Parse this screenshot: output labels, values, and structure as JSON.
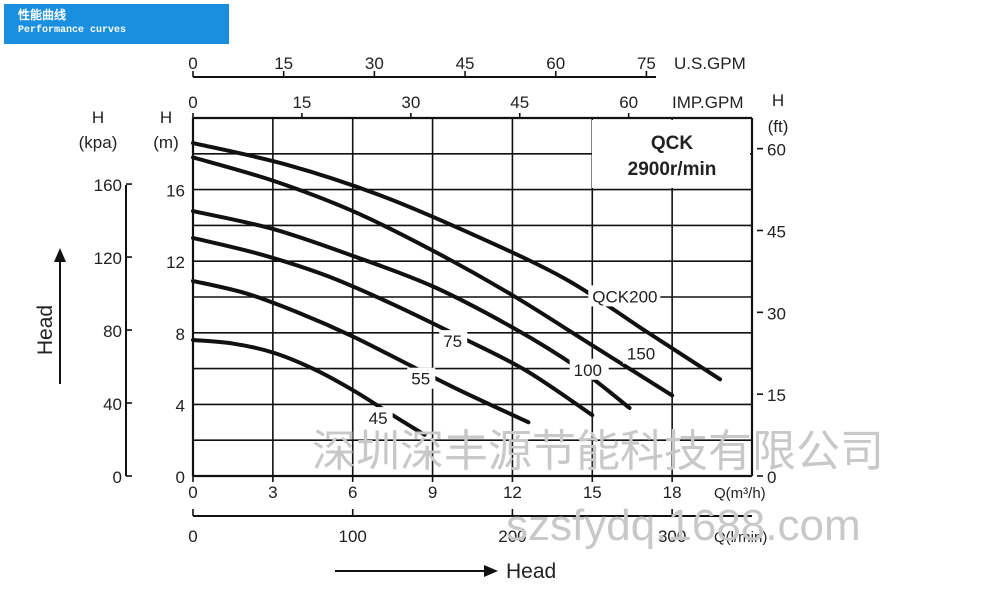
{
  "banner": {
    "title_cn": "性能曲线",
    "title_en": "Performance curves"
  },
  "watermark": {
    "line1": "深圳深丰源节能科技有限公司",
    "line2": "szsfydq.1688.com"
  },
  "chart_data": {
    "type": "line",
    "model": "QCK",
    "speed": "2900r/min",
    "x": {
      "label": "Q(m³/h)",
      "range": [
        0,
        21
      ],
      "ticks": [
        0,
        3,
        6,
        9,
        12,
        15,
        18
      ],
      "grid_every": 3
    },
    "x_secondary": {
      "label": "Q(l/min)",
      "ticks": [
        0,
        100,
        200,
        300
      ]
    },
    "top_axis_usgpm": {
      "label": "U.S.GPM",
      "ticks": [
        0,
        15,
        30,
        45,
        60,
        75
      ]
    },
    "top_axis_impgpm": {
      "label": "IMP.GPM",
      "ticks": [
        0,
        15,
        30,
        45,
        60
      ]
    },
    "y": {
      "label": "H\n(m)",
      "range": [
        0,
        20
      ],
      "ticks": [
        0,
        4,
        8,
        12,
        16
      ],
      "grid_every": 2
    },
    "y_kpa": {
      "label": "H\n(kpa)",
      "ticks": [
        0,
        40,
        80,
        120,
        160
      ]
    },
    "y_ft": {
      "label": "H\n(ft)",
      "ticks": [
        0,
        15,
        30,
        45,
        60
      ]
    },
    "left_axis_title": "Head",
    "bottom_axis_title": "Head",
    "series": [
      {
        "name": "45",
        "x": [
          0,
          1.5,
          3,
          4.5,
          6,
          7.5,
          8.7
        ],
        "y": [
          7.6,
          7.4,
          6.9,
          6.0,
          4.8,
          3.4,
          2.3
        ],
        "label_x": 6.6,
        "label_y": 2.9
      },
      {
        "name": "55",
        "x": [
          0,
          2,
          4,
          6,
          8,
          10,
          12.6
        ],
        "y": [
          10.9,
          10.2,
          9.1,
          7.8,
          6.3,
          4.8,
          3.0
        ],
        "label_x": 8.2,
        "label_y": 5.1
      },
      {
        "name": "75",
        "x": [
          0,
          2.5,
          5,
          7.5,
          10,
          12.5,
          15
        ],
        "y": [
          13.3,
          12.4,
          11.2,
          9.6,
          7.8,
          5.9,
          3.4
        ],
        "label_x": 9.4,
        "label_y": 7.2
      },
      {
        "name": "100",
        "x": [
          0,
          3,
          6,
          9,
          12,
          14.5,
          16.4
        ],
        "y": [
          14.8,
          13.8,
          12.3,
          10.6,
          8.3,
          6.0,
          3.8
        ],
        "label_x": 14.3,
        "label_y": 5.6
      },
      {
        "name": "150",
        "x": [
          0,
          3,
          6,
          9,
          12,
          15,
          18
        ],
        "y": [
          17.8,
          16.5,
          14.8,
          12.6,
          10.1,
          7.3,
          4.5
        ],
        "label_x": 16.3,
        "label_y": 6.5
      },
      {
        "name": "QCK200",
        "x": [
          0,
          3.5,
          7,
          10.5,
          14,
          17,
          19.8
        ],
        "y": [
          18.6,
          17.4,
          15.7,
          13.5,
          11.0,
          8.1,
          5.4
        ],
        "label_x": 15.0,
        "label_y": 9.7
      }
    ],
    "grid": true
  }
}
